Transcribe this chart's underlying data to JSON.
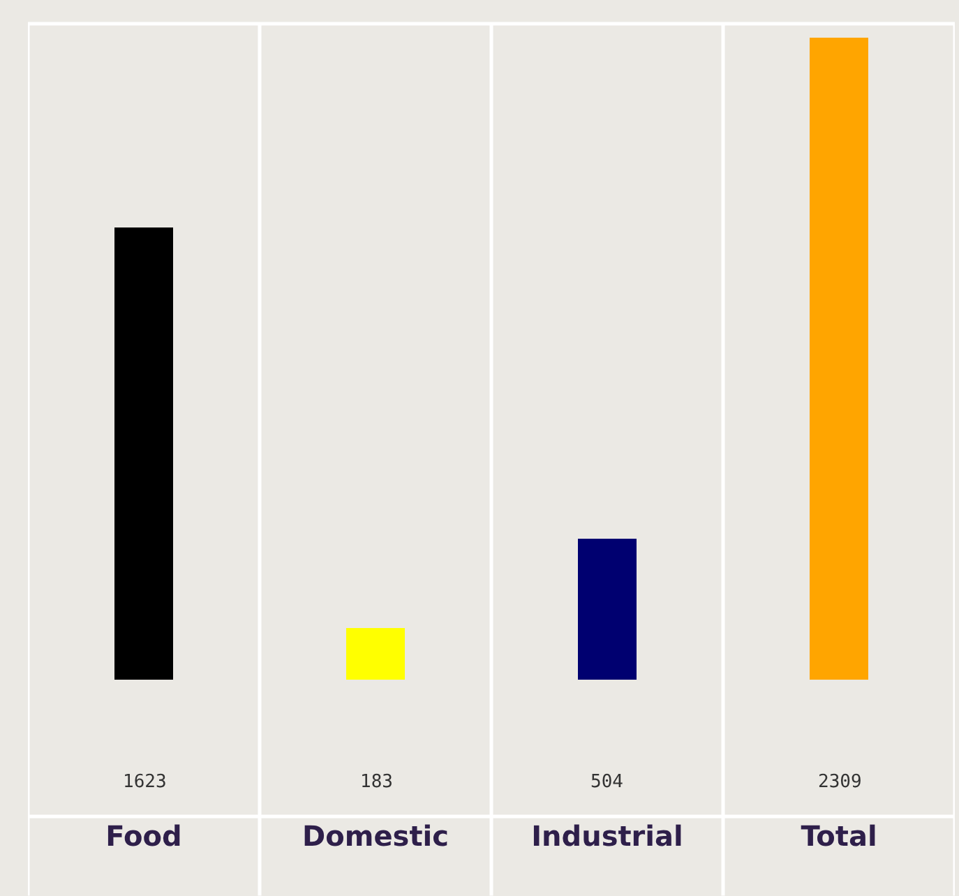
{
  "chart_data": {
    "type": "bar",
    "categories": [
      "Food",
      "Domestic",
      "Industrial",
      "Total"
    ],
    "values": [
      1623,
      183,
      504,
      2309
    ],
    "colors": [
      "#000000",
      "#ffff00",
      "#000070",
      "#ffa500"
    ],
    "data_labels": true
  }
}
